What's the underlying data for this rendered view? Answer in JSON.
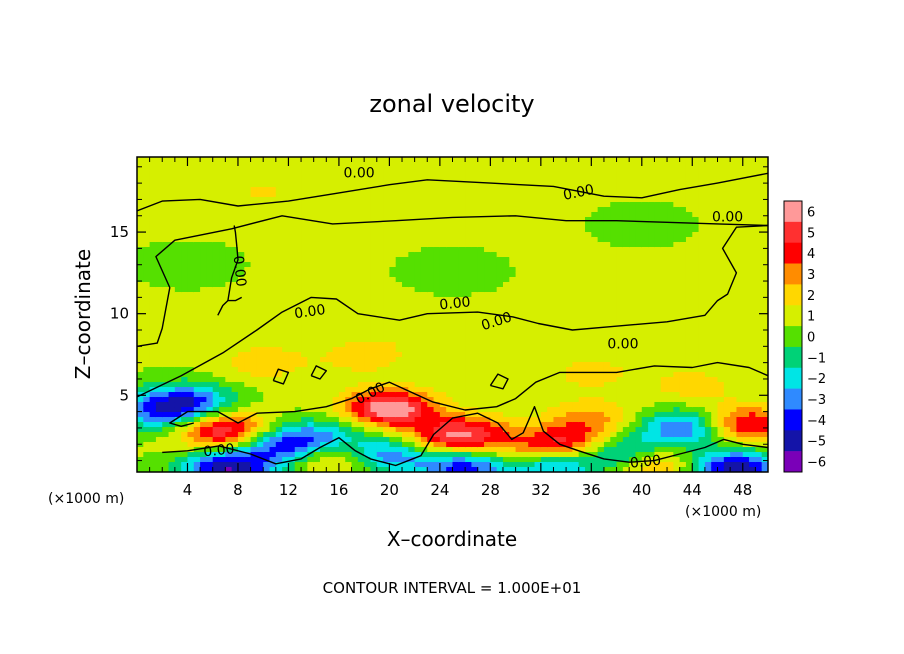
{
  "chart_data": {
    "type": "heatmap",
    "title": "zonal velocity",
    "xlabel": "X–coordinate",
    "ylabel": "Z–coordinate",
    "x_unit_left": "(×1000 m)",
    "x_unit_right": "(×1000 m)",
    "footer": "CONTOUR INTERVAL = 1.000E+01",
    "xlim": [
      0,
      50
    ],
    "ylim": [
      0.3,
      19.6
    ],
    "x_ticks": [
      4,
      8,
      12,
      16,
      20,
      24,
      28,
      32,
      36,
      40,
      44,
      48
    ],
    "x_tick_labels": [
      "4",
      "8",
      "12",
      "16",
      "20",
      "24",
      "28",
      "32",
      "36",
      "40",
      "44",
      "48"
    ],
    "y_ticks": [
      5,
      10,
      15
    ],
    "y_tick_labels": [
      "5",
      "10",
      "15"
    ],
    "colorbar": {
      "min": -6,
      "max": 6,
      "levels": [
        6,
        5,
        4,
        3,
        2,
        1,
        0,
        -1,
        -2,
        -3,
        -4,
        -5,
        -6
      ],
      "labels": [
        "6",
        "5",
        "4",
        "3",
        "2",
        "1",
        "0",
        "−1",
        "−2",
        "−3",
        "−4",
        "−5",
        "−6"
      ],
      "colors": [
        "#ff9999",
        "#ff3030",
        "#ff0000",
        "#ff8c00",
        "#ffd700",
        "#d6ef00",
        "#55e000",
        "#00d277",
        "#00e5e5",
        "#2f8aff",
        "#0000ff",
        "#1414a8",
        "#7a00b8"
      ]
    },
    "background_value": 0.6,
    "field_features": [
      {
        "x": 20.0,
        "z": 4.2,
        "value": 6.0
      },
      {
        "x": 7.0,
        "z": 2.8,
        "value": 5.2
      },
      {
        "x": 26.0,
        "z": 2.6,
        "value": 4.6
      },
      {
        "x": 34.0,
        "z": 2.0,
        "value": 4.4
      },
      {
        "x": 48.0,
        "z": 3.2,
        "value": 4.5
      },
      {
        "x": 40.5,
        "z": 0.9,
        "value": 3.6
      },
      {
        "x": 15.5,
        "z": 1.4,
        "value": 3.2
      },
      {
        "x": 30.5,
        "z": 1.3,
        "value": 2.6
      },
      {
        "x": 36.0,
        "z": 3.6,
        "value": 2.2
      },
      {
        "x": 23.0,
        "z": 2.0,
        "value": 2.0
      },
      {
        "x": 7.2,
        "z": 0.5,
        "value": -6.0
      },
      {
        "x": 47.5,
        "z": 0.5,
        "value": -6.0
      },
      {
        "x": 4.0,
        "z": 4.6,
        "value": -4.4
      },
      {
        "x": 11.5,
        "z": 1.9,
        "value": -4.6
      },
      {
        "x": 20.0,
        "z": 1.4,
        "value": -4.5
      },
      {
        "x": 26.0,
        "z": 0.7,
        "value": -5.0
      },
      {
        "x": 32.5,
        "z": 0.8,
        "value": -4.8
      },
      {
        "x": 38.5,
        "z": 1.4,
        "value": -4.4
      },
      {
        "x": 43.5,
        "z": 3.0,
        "value": -4.6
      },
      {
        "x": 1.5,
        "z": 3.9,
        "value": -3.0
      },
      {
        "x": 15.0,
        "z": 2.4,
        "value": -3.2
      },
      {
        "x": 10.0,
        "z": 7.0,
        "value": 1.6
      },
      {
        "x": 18.0,
        "z": 7.4,
        "value": 1.5
      },
      {
        "x": 36.0,
        "z": 6.4,
        "value": 1.3
      },
      {
        "x": 44.0,
        "z": 5.6,
        "value": 1.4
      },
      {
        "x": 4.0,
        "z": 13.0,
        "value": -0.6
      },
      {
        "x": 25.0,
        "z": 12.6,
        "value": -0.6
      },
      {
        "x": 40.0,
        "z": 15.5,
        "value": -0.5
      },
      {
        "x": 10.0,
        "z": 17.5,
        "value": 1.0
      },
      {
        "x": 30.0,
        "z": 18.5,
        "value": 0.9
      },
      {
        "x": 22.0,
        "z": 9.0,
        "value": 0.5
      },
      {
        "x": 46.0,
        "z": 11.0,
        "value": 0.4
      }
    ],
    "contour_level": 0.0,
    "contours": [
      [
        [
          0,
          16.3
        ],
        [
          2,
          16.9
        ],
        [
          5,
          17.0
        ],
        [
          8,
          16.6
        ],
        [
          12,
          16.9
        ],
        [
          16,
          17.4
        ],
        [
          20,
          17.9
        ],
        [
          23,
          18.2
        ],
        [
          28,
          18.0
        ],
        [
          33,
          17.8
        ],
        [
          37,
          17.2
        ],
        [
          40,
          17.1
        ],
        [
          43,
          17.6
        ],
        [
          46,
          18.0
        ],
        [
          50,
          18.6
        ]
      ],
      [
        [
          0,
          8.0
        ],
        [
          1.6,
          8.2
        ],
        [
          2,
          9.1
        ],
        [
          2.6,
          11.6
        ],
        [
          1.5,
          13.5
        ],
        [
          3.0,
          14.5
        ],
        [
          7.5,
          15.2
        ],
        [
          11.5,
          16.0
        ],
        [
          15.5,
          15.5
        ],
        [
          20.5,
          15.7
        ],
        [
          25,
          15.9
        ],
        [
          30,
          16.0
        ],
        [
          34,
          15.7
        ],
        [
          38,
          15.7
        ],
        [
          42,
          15.6
        ],
        [
          46,
          15.5
        ],
        [
          50,
          15.4
        ]
      ],
      [
        [
          0,
          4.9
        ],
        [
          3.5,
          6.2
        ],
        [
          6.8,
          7.6
        ],
        [
          9.5,
          9.0
        ],
        [
          11.5,
          10.1
        ],
        [
          13.8,
          11.0
        ],
        [
          15.8,
          10.9
        ],
        [
          17.5,
          10.0
        ],
        [
          20.8,
          9.6
        ],
        [
          23.0,
          10.0
        ],
        [
          27.0,
          10.1
        ],
        [
          29.8,
          9.8
        ],
        [
          31.8,
          9.4
        ],
        [
          34.5,
          9.0
        ],
        [
          37.5,
          9.2
        ],
        [
          42.0,
          9.5
        ],
        [
          45.0,
          9.9
        ],
        [
          46.0,
          10.8
        ],
        [
          46.8,
          11.2
        ],
        [
          47.5,
          12.5
        ],
        [
          46.4,
          14.0
        ],
        [
          47.5,
          15.3
        ],
        [
          50,
          15.4
        ]
      ],
      [
        [
          7.2,
          10.8
        ],
        [
          7.5,
          12.2
        ],
        [
          8.0,
          13.3
        ],
        [
          7.9,
          14.2
        ],
        [
          7.8,
          15.0
        ],
        [
          7.7,
          15.4
        ]
      ],
      [
        [
          6.4,
          9.9
        ],
        [
          6.8,
          10.5
        ],
        [
          7.2,
          10.8
        ],
        [
          7.8,
          10.8
        ],
        [
          8.3,
          11.0
        ]
      ],
      [
        [
          4.5,
          3.3
        ],
        [
          3.5,
          3.1
        ],
        [
          2.6,
          3.3
        ],
        [
          4.0,
          4.0
        ],
        [
          6.4,
          4.0
        ],
        [
          8.0,
          3.3
        ],
        [
          9.5,
          3.9
        ],
        [
          12.5,
          4.0
        ],
        [
          15.0,
          4.3
        ],
        [
          17.0,
          4.8
        ],
        [
          18.5,
          5.4
        ],
        [
          20.0,
          5.8
        ],
        [
          22.0,
          5.1
        ],
        [
          23.4,
          4.6
        ],
        [
          26.0,
          4.1
        ],
        [
          28.5,
          4.3
        ],
        [
          30.0,
          4.8
        ],
        [
          31.6,
          5.8
        ],
        [
          33.5,
          6.4
        ],
        [
          36.0,
          6.4
        ],
        [
          38.0,
          6.4
        ],
        [
          41.0,
          6.8
        ],
        [
          44.0,
          6.7
        ],
        [
          46.0,
          7.0
        ],
        [
          48.5,
          6.7
        ],
        [
          50,
          6.2
        ]
      ],
      [
        [
          2.0,
          1.5
        ],
        [
          4.0,
          1.6
        ],
        [
          6.5,
          1.9
        ],
        [
          9.0,
          1.4
        ],
        [
          11.0,
          0.8
        ],
        [
          13.0,
          1.1
        ],
        [
          14.5,
          1.8
        ],
        [
          16.0,
          2.4
        ],
        [
          17.3,
          1.6
        ],
        [
          18.5,
          1.1
        ],
        [
          20.5,
          0.7
        ],
        [
          22.5,
          1.3
        ],
        [
          23.5,
          2.6
        ],
        [
          25.0,
          3.6
        ],
        [
          27.0,
          3.9
        ],
        [
          28.6,
          3.3
        ],
        [
          29.7,
          2.3
        ],
        [
          30.6,
          2.7
        ],
        [
          31.0,
          3.4
        ],
        [
          31.5,
          4.3
        ],
        [
          32.2,
          2.8
        ],
        [
          33.5,
          2.0
        ],
        [
          35.0,
          1.6
        ],
        [
          37.0,
          1.1
        ],
        [
          39.0,
          0.9
        ],
        [
          41.0,
          1.0
        ],
        [
          43.0,
          1.4
        ],
        [
          45.0,
          1.8
        ],
        [
          46.5,
          2.3
        ],
        [
          48.0,
          2.0
        ],
        [
          50,
          1.8
        ]
      ],
      [
        [
          10.8,
          5.9
        ],
        [
          11.2,
          6.6
        ],
        [
          12.0,
          6.4
        ],
        [
          11.6,
          5.7
        ],
        [
          10.8,
          5.9
        ]
      ],
      [
        [
          13.8,
          6.2
        ],
        [
          14.2,
          6.8
        ],
        [
          15.0,
          6.5
        ],
        [
          14.5,
          6.0
        ],
        [
          13.8,
          6.2
        ]
      ],
      [
        [
          28.0,
          5.6
        ],
        [
          28.6,
          6.3
        ],
        [
          29.4,
          6.0
        ],
        [
          29.0,
          5.4
        ],
        [
          28.0,
          5.6
        ]
      ]
    ],
    "contour_labels": [
      {
        "text": "0.00",
        "x": 17.6,
        "z": 18.6,
        "angle": 0
      },
      {
        "text": "0.00",
        "x": 35.0,
        "z": 17.4,
        "angle": -12
      },
      {
        "text": "0.00",
        "x": 46.8,
        "z": 15.9,
        "angle": 0
      },
      {
        "text": "0.00",
        "x": 8.1,
        "z": 12.6,
        "angle": 84
      },
      {
        "text": "0.00",
        "x": 13.7,
        "z": 10.1,
        "angle": -8
      },
      {
        "text": "0.00",
        "x": 25.2,
        "z": 10.6,
        "angle": -6
      },
      {
        "text": "0.00",
        "x": 28.5,
        "z": 9.5,
        "angle": -18
      },
      {
        "text": "0.00",
        "x": 38.5,
        "z": 8.1,
        "angle": 0
      },
      {
        "text": "0.00",
        "x": 18.5,
        "z": 5.1,
        "angle": -28
      },
      {
        "text": "0.00",
        "x": 6.5,
        "z": 1.6,
        "angle": -6
      },
      {
        "text": "0.00",
        "x": 40.3,
        "z": 0.9,
        "angle": -6
      }
    ]
  }
}
